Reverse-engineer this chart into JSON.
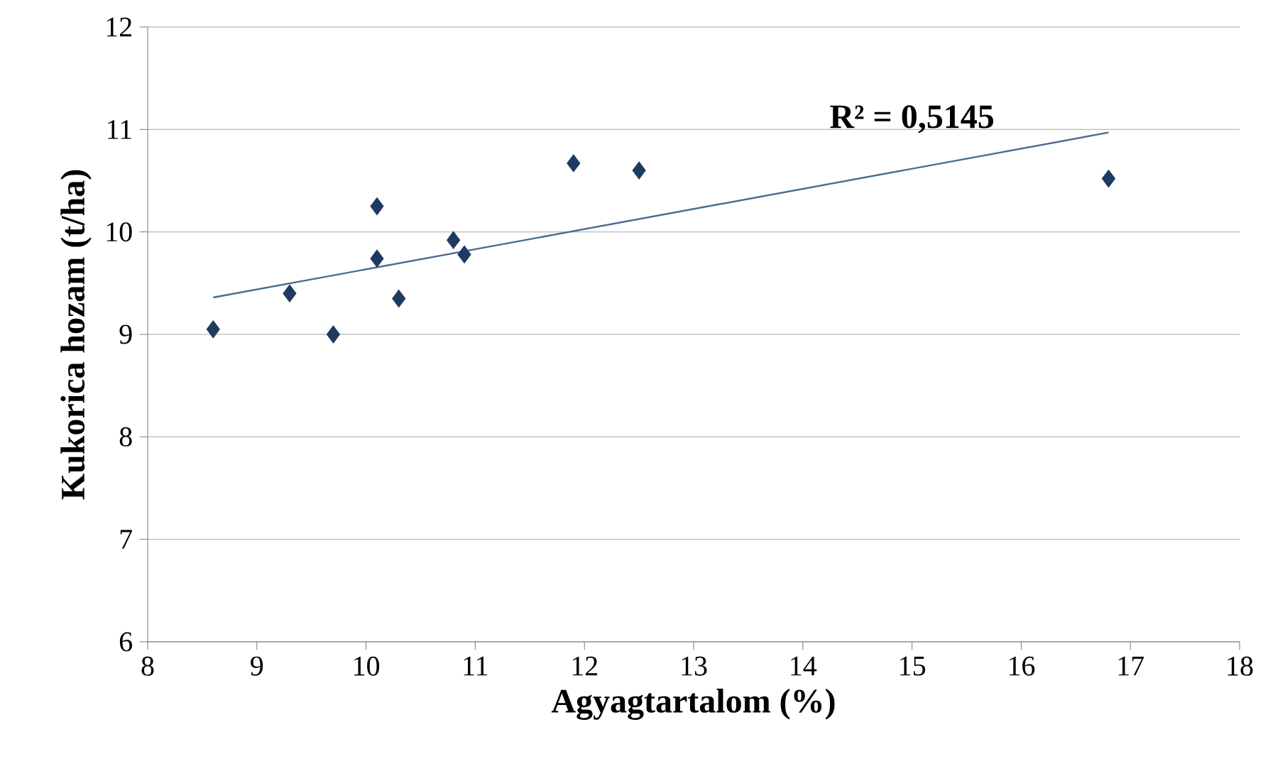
{
  "chart_data": {
    "type": "scatter",
    "xlabel": "Agyagtartalom (%)",
    "ylabel": "Kukorica hozam (t/ha)",
    "annotations": [
      "R² = 0,5145"
    ],
    "series": [
      {
        "color": "#1f3a60",
        "marker": "diamond",
        "x": [
          8.6,
          9.3,
          9.7,
          10.1,
          10.1,
          10.3,
          10.8,
          10.9,
          11.9,
          12.5,
          16.8
        ],
        "values": [
          9.05,
          9.4,
          9.0,
          10.25,
          9.74,
          9.35,
          9.92,
          9.78,
          10.67,
          10.6,
          10.52
        ]
      },
      {
        "type": "line",
        "color": "#4a6a90",
        "marker": "none",
        "x": [
          8.6,
          16.8
        ],
        "values": [
          9.36,
          10.97
        ]
      }
    ],
    "xlim": [
      8,
      18
    ],
    "ylim": [
      6,
      12
    ],
    "xticks": [
      8,
      9,
      10,
      11,
      12,
      13,
      14,
      15,
      16,
      17,
      18
    ],
    "yticks": [
      6,
      7,
      8,
      9,
      10,
      11,
      12
    ],
    "grid": "y"
  }
}
